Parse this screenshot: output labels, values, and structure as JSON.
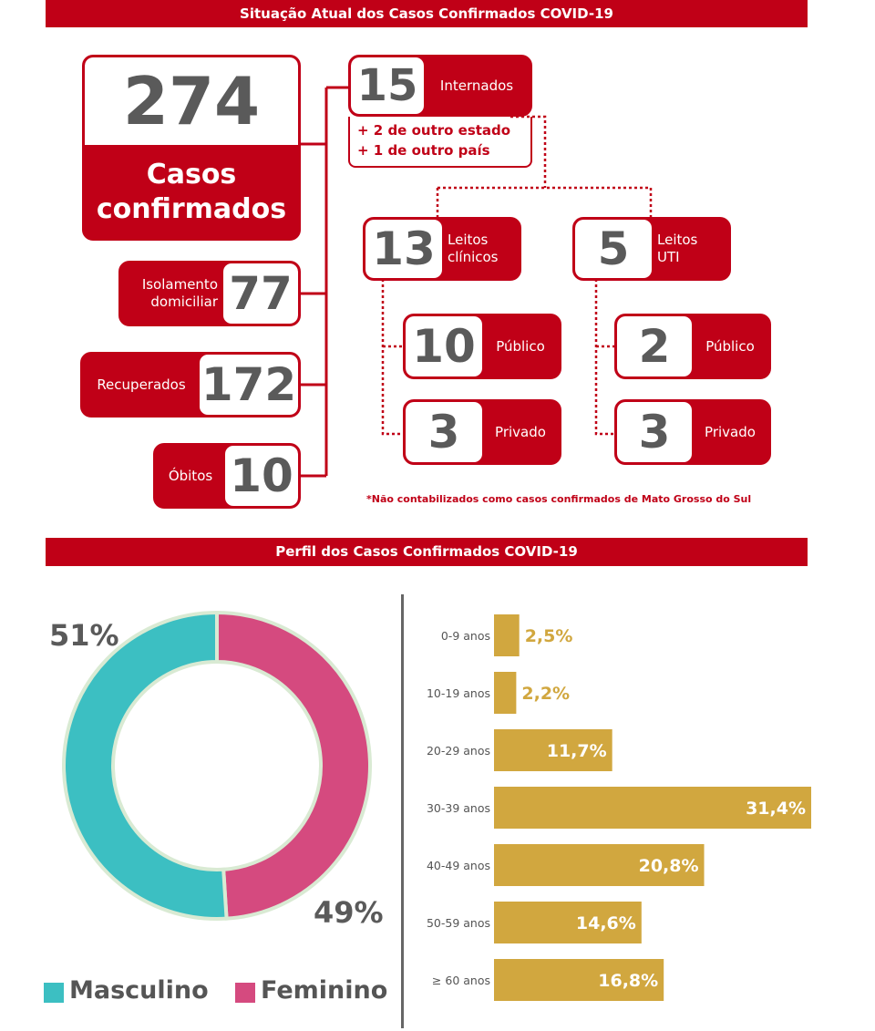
{
  "situacao": {
    "title": "Situação Atual dos Casos Confirmados COVID-19",
    "confirmados": {
      "value": "274",
      "label_line1": "Casos",
      "label_line2": "confirmados"
    },
    "isolamento": {
      "value": "77",
      "label_line1": "Isolamento",
      "label_line2": "domiciliar"
    },
    "recuperados": {
      "value": "172",
      "label": "Recuperados"
    },
    "obitos": {
      "value": "10",
      "label": "Óbitos"
    },
    "internados": {
      "value": "15",
      "label": "Internados",
      "extra1": "+ 2 de outro estado",
      "extra2": "+ 1 de outro país"
    },
    "leitos_clinicos": {
      "value": "13",
      "label_line1": "Leitos",
      "label_line2": "clínicos",
      "publico": {
        "value": "10",
        "label": "Público"
      },
      "privado": {
        "value": "3",
        "label": "Privado"
      }
    },
    "leitos_uti": {
      "value": "5",
      "label_line1": "Leitos",
      "label_line2": "UTI",
      "publico": {
        "value": "2",
        "label": "Público"
      },
      "privado": {
        "value": "3",
        "label": "Privado"
      }
    },
    "footnote": "*Não contabilizados como casos confirmados de Mato Grosso do Sul"
  },
  "perfil": {
    "title": "Perfil dos Casos Confirmados COVID-19"
  },
  "chart_data": [
    {
      "type": "pie",
      "labels": [
        "Masculino",
        "Feminino"
      ],
      "values": [
        51,
        49
      ],
      "value_labels": [
        "51%",
        "49%"
      ],
      "colors": [
        "#3cbfc2",
        "#d54a7f"
      ],
      "legend": "bottom"
    },
    {
      "type": "bar",
      "orientation": "horizontal",
      "categories": [
        "0-9 anos",
        "10-19 anos",
        "20-29 anos",
        "30-39 anos",
        "40-49 anos",
        "50-59 anos",
        "≥ 60 anos"
      ],
      "values": [
        2.5,
        2.2,
        11.7,
        31.4,
        20.8,
        14.6,
        16.8
      ],
      "value_labels": [
        "2,5%",
        "2,2%",
        "11,7%",
        "31,4%",
        "20,8%",
        "14,6%",
        "16,8%"
      ],
      "color": "#d1a73f"
    }
  ]
}
